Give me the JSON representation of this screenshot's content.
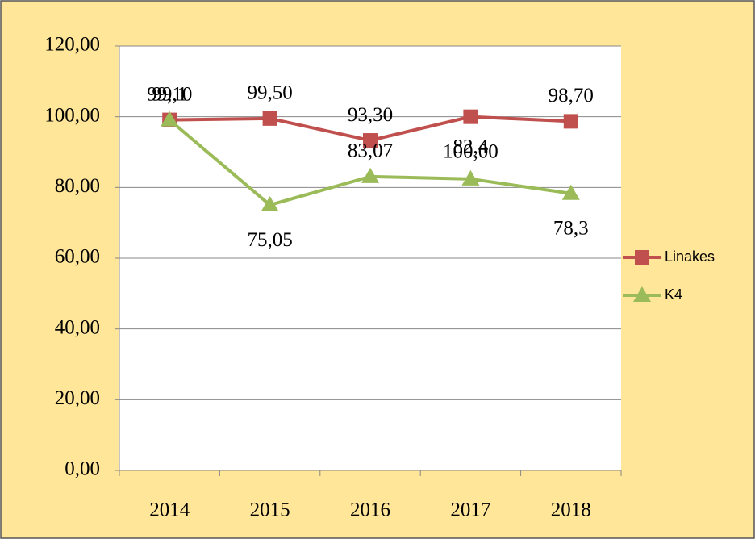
{
  "chart_data": {
    "type": "line",
    "categories": [
      "2014",
      "2015",
      "2016",
      "2017",
      "2018"
    ],
    "series": [
      {
        "name": "Linakes",
        "color": "#c0504d",
        "marker": "square",
        "values": [
          99.1,
          99.5,
          93.3,
          100,
          98.7
        ],
        "value_labels": [
          "99,10",
          "99,50",
          "93,30",
          "100,00",
          "98,70"
        ]
      },
      {
        "name": "K4",
        "color": "#9bbb59",
        "marker": "triangle",
        "values": [
          99.1,
          75.05,
          83.07,
          82.4,
          78.3
        ],
        "value_labels": [
          "99,1",
          "75,05",
          "83,07",
          "82,4",
          "78,3"
        ]
      }
    ],
    "ylim": [
      0,
      120
    ],
    "yticks": [
      {
        "value": 0,
        "label": "0,00"
      },
      {
        "value": 20,
        "label": "20,00"
      },
      {
        "value": 40,
        "label": "40,00"
      },
      {
        "value": 60,
        "label": "60,00"
      },
      {
        "value": 80,
        "label": "80,00"
      },
      {
        "value": 100,
        "label": "100,00"
      },
      {
        "value": 120,
        "label": "120,00"
      }
    ],
    "grid": true,
    "legend": "right"
  }
}
